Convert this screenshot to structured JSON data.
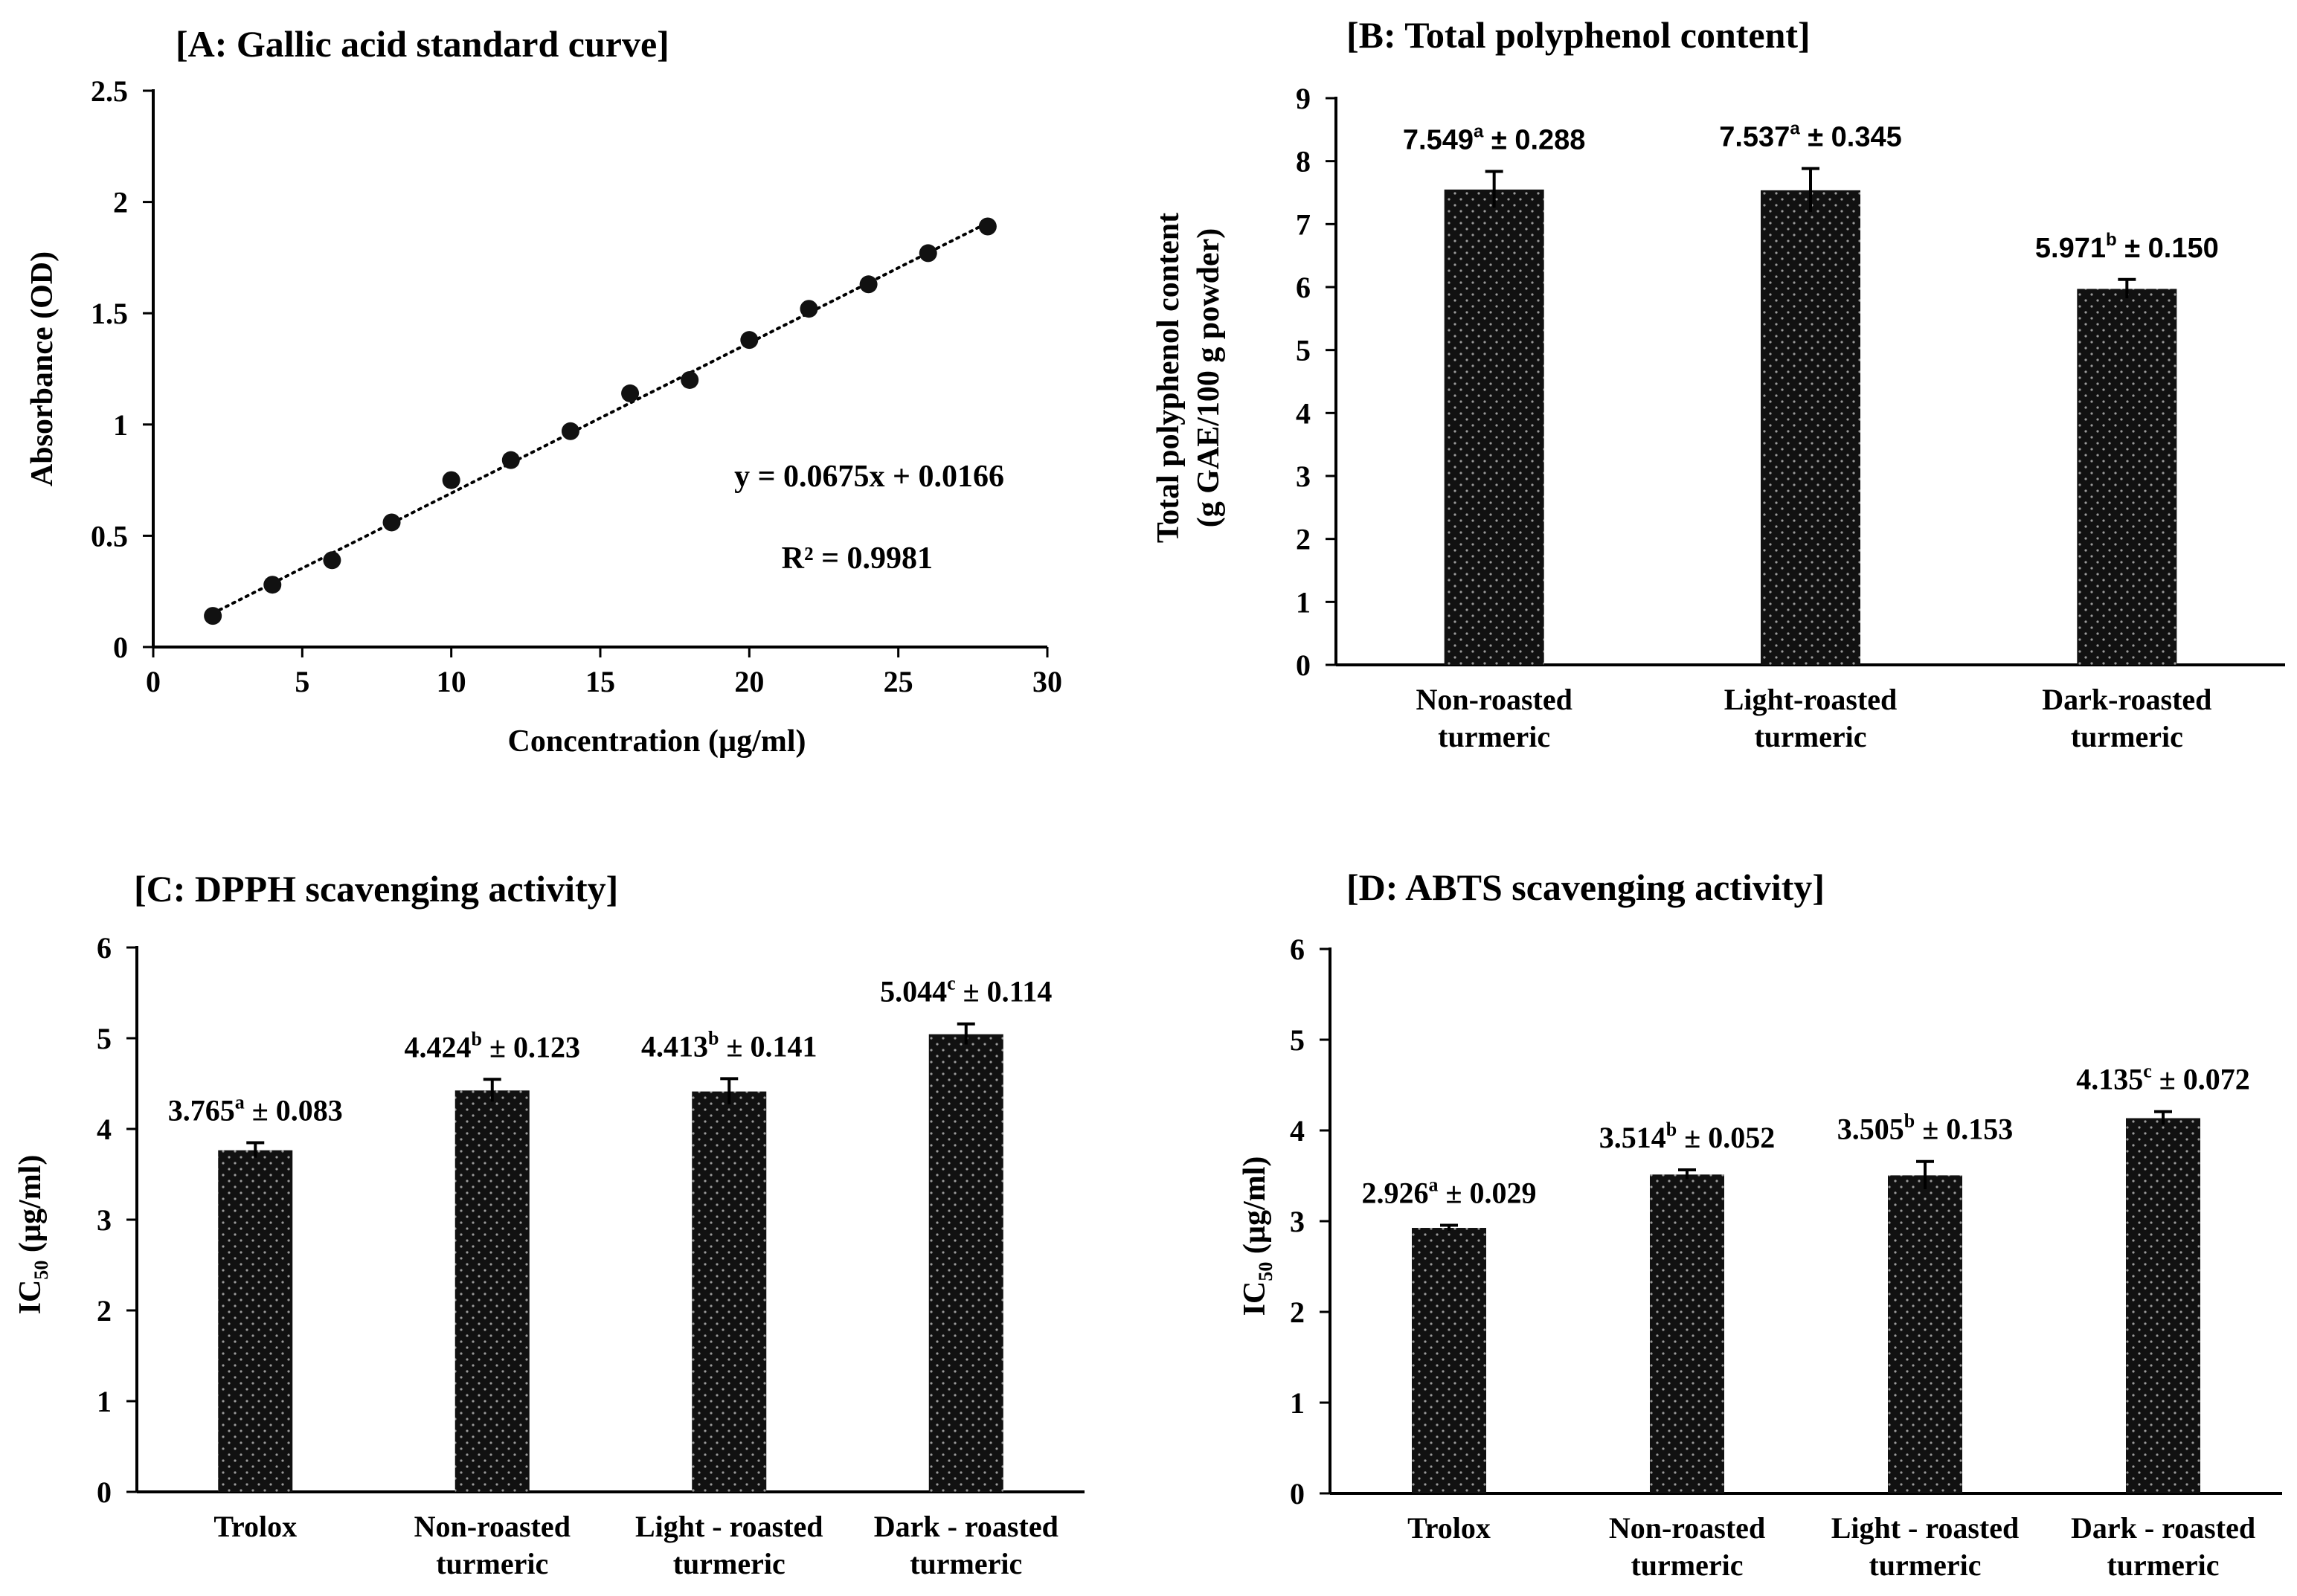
{
  "chart_data": [
    {
      "id": "A",
      "type": "scatter",
      "title": "[A: Gallic acid standard curve]",
      "xlabel": "Concentration (µg/ml)",
      "ylabel": "Absorbance (OD)",
      "xlim": [
        0,
        30
      ],
      "ylim": [
        0,
        2.5
      ],
      "xticks": [
        "0",
        "5",
        "10",
        "15",
        "20",
        "25",
        "30"
      ],
      "yticks": [
        "0",
        "0.5",
        "1",
        "1.5",
        "2",
        "2.5"
      ],
      "x": [
        2,
        4,
        6,
        8,
        10,
        12,
        14,
        16,
        18,
        20,
        22,
        24,
        26,
        28
      ],
      "y": [
        0.14,
        0.28,
        0.39,
        0.56,
        0.75,
        0.84,
        0.97,
        1.14,
        1.2,
        1.38,
        1.52,
        1.63,
        1.77,
        1.89
      ],
      "trendline": {
        "slope": 0.0675,
        "intercept": 0.0166,
        "x_range": [
          2,
          28
        ]
      },
      "equation": "y = 0.0675x + 0.0166",
      "r_squared": "R² = 0.9981"
    },
    {
      "id": "B",
      "type": "bar",
      "title": "[B: Total polyphenol content]",
      "ylabel_line1": "Total polyphenol content",
      "ylabel_line2": "(g GAE/100 g powder)",
      "ylim": [
        0,
        9
      ],
      "yticks": [
        "0",
        "1",
        "2",
        "3",
        "4",
        "5",
        "6",
        "7",
        "8",
        "9"
      ],
      "categories": [
        [
          "Non-roasted",
          "turmeric"
        ],
        [
          "Light-roasted",
          "turmeric"
        ],
        [
          "Dark-roasted",
          "turmeric"
        ]
      ],
      "values": [
        7.549,
        7.537,
        5.971
      ],
      "errors": [
        0.288,
        0.345,
        0.15
      ],
      "labels": [
        {
          "value": "7.549",
          "letter": "a",
          "err": " ± 0.288"
        },
        {
          "value": "7.537",
          "letter": "a",
          "err": " ± 0.345"
        },
        {
          "value": "5.971",
          "letter": "b",
          "err": " ± 0.150"
        }
      ]
    },
    {
      "id": "C",
      "type": "bar",
      "title": "[C: DPPH scavenging activity]",
      "ylabel_main": "IC",
      "ylabel_sub": "50",
      "ylabel_rest": " (µg/ml)",
      "ylim": [
        0,
        6
      ],
      "yticks": [
        "0",
        "1",
        "2",
        "3",
        "4",
        "5",
        "6"
      ],
      "categories": [
        [
          "Trolox"
        ],
        [
          "Non-roasted",
          "turmeric"
        ],
        [
          "Light - roasted",
          "turmeric"
        ],
        [
          "Dark - roasted",
          "turmeric"
        ]
      ],
      "values": [
        3.765,
        4.424,
        4.413,
        5.044
      ],
      "errors": [
        0.083,
        0.123,
        0.141,
        0.114
      ],
      "labels": [
        {
          "value": "3.765",
          "letter": "a",
          "err": " ± 0.083"
        },
        {
          "value": "4.424",
          "letter": "b",
          "err": " ± 0.123"
        },
        {
          "value": "4.413",
          "letter": "b",
          "err": " ± 0.141"
        },
        {
          "value": "5.044",
          "letter": "c",
          "err": " ± 0.114"
        }
      ]
    },
    {
      "id": "D",
      "type": "bar",
      "title": "[D: ABTS scavenging activity]",
      "ylabel_main": "IC",
      "ylabel_sub": "50",
      "ylabel_rest": " (µg/ml)",
      "ylim": [
        0,
        6
      ],
      "yticks": [
        "0",
        "1",
        "2",
        "3",
        "4",
        "5",
        "6"
      ],
      "categories": [
        [
          "Trolox"
        ],
        [
          "Non-roasted",
          "turmeric"
        ],
        [
          "Light - roasted",
          "turmeric"
        ],
        [
          "Dark - roasted",
          "turmeric"
        ]
      ],
      "values": [
        2.926,
        3.514,
        3.505,
        4.135
      ],
      "errors": [
        0.029,
        0.052,
        0.153,
        0.072
      ],
      "labels": [
        {
          "value": "2.926",
          "letter": "a",
          "err": " ± 0.029"
        },
        {
          "value": "3.514",
          "letter": "b",
          "err": " ± 0.052"
        },
        {
          "value": "3.505",
          "letter": "b",
          "err": " ± 0.153"
        },
        {
          "value": "4.135",
          "letter": "c",
          "err": " ± 0.072"
        }
      ]
    }
  ]
}
